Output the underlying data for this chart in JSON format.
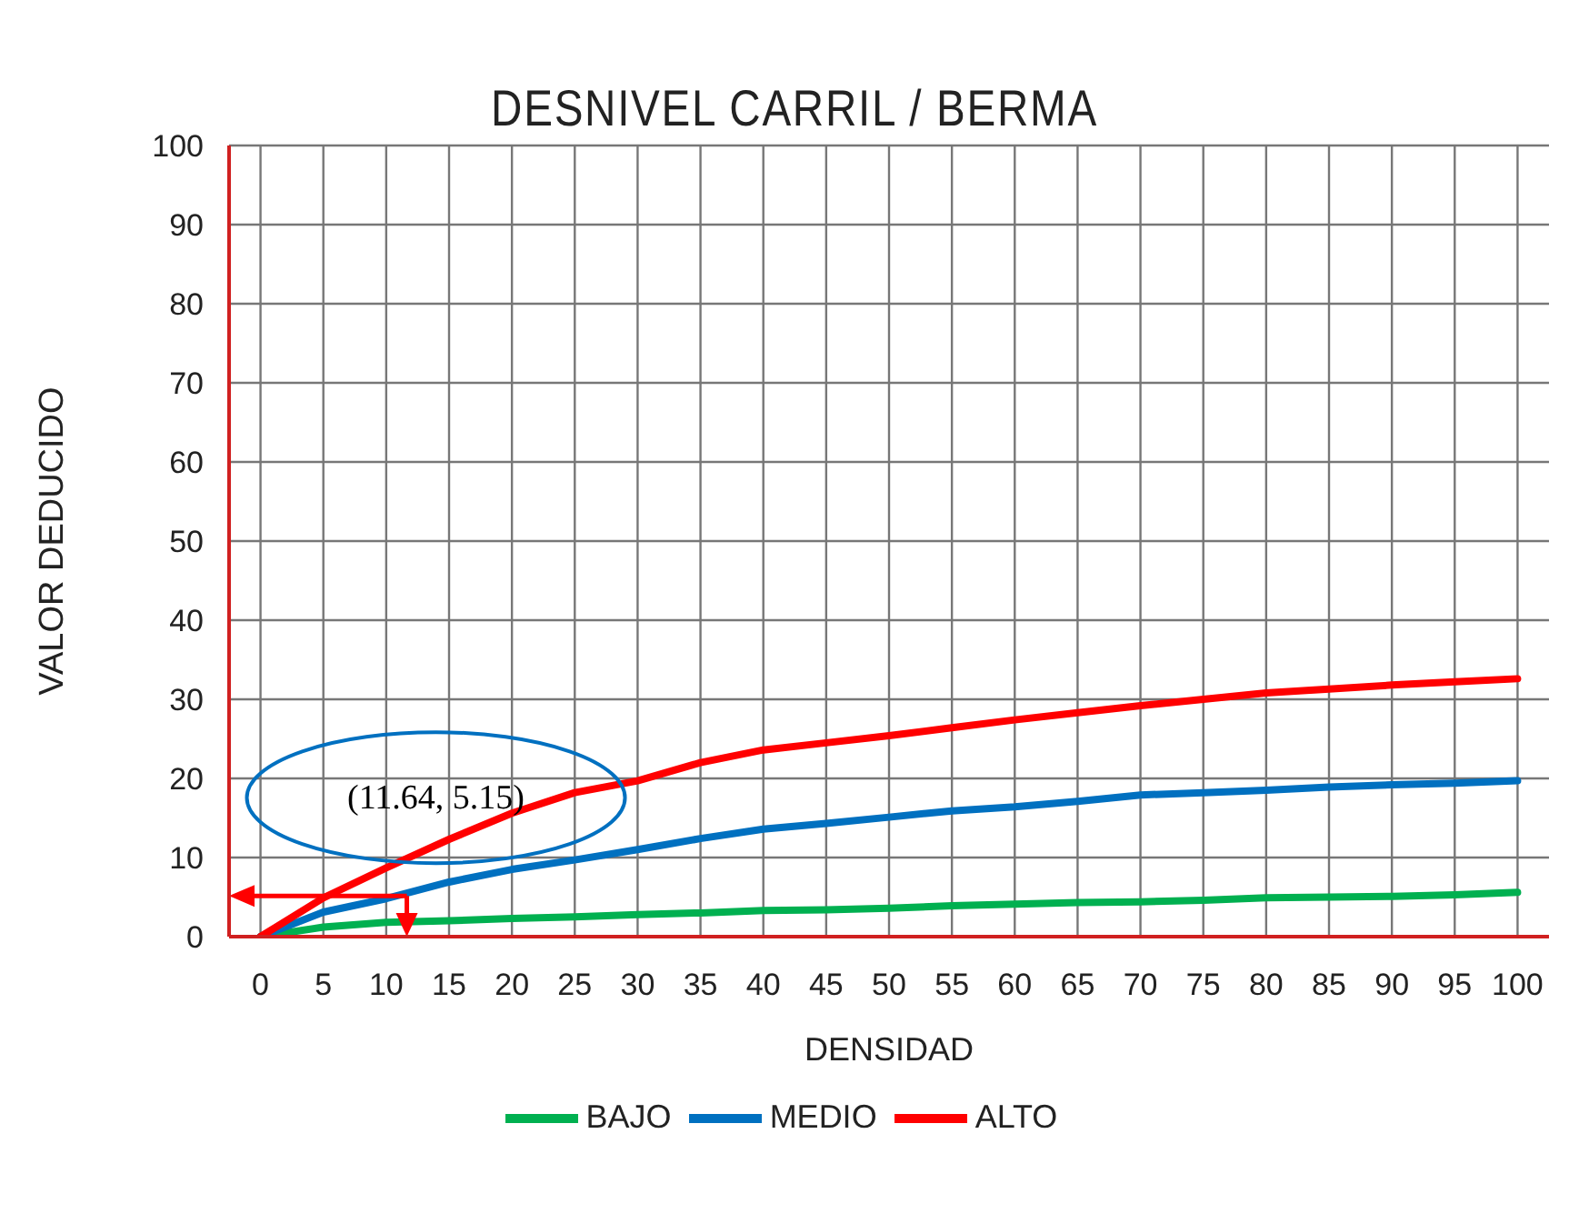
{
  "chart_data": {
    "type": "line",
    "title": "DESNIVEL CARRIL / BERMA",
    "xlabel": "DENSIDAD",
    "ylabel": "VALOR DEDUCIDO",
    "x": [
      0,
      5,
      10,
      15,
      20,
      25,
      30,
      35,
      40,
      45,
      50,
      55,
      60,
      65,
      70,
      75,
      80,
      85,
      90,
      95,
      100
    ],
    "series": [
      {
        "name": "BAJO",
        "color": "#00b050",
        "values": [
          0,
          1.2,
          1.8,
          2.0,
          2.3,
          2.5,
          2.8,
          3.0,
          3.3,
          3.4,
          3.6,
          3.9,
          4.1,
          4.3,
          4.4,
          4.6,
          4.9,
          5.0,
          5.1,
          5.3,
          5.6
        ]
      },
      {
        "name": "MEDIO",
        "color": "#0070c0",
        "values": [
          0,
          3.1,
          4.8,
          6.9,
          8.5,
          9.7,
          11.0,
          12.4,
          13.6,
          14.3,
          15.1,
          15.9,
          16.4,
          17.1,
          17.9,
          18.2,
          18.5,
          18.9,
          19.2,
          19.4,
          19.7
        ]
      },
      {
        "name": "ALTO",
        "color": "#ff0000",
        "values": [
          0,
          4.9,
          8.7,
          12.3,
          15.6,
          18.2,
          19.7,
          22.0,
          23.6,
          24.5,
          25.4,
          26.4,
          27.4,
          28.3,
          29.2,
          30.0,
          30.8,
          31.3,
          31.8,
          32.2,
          32.6
        ]
      }
    ],
    "xlim": [
      -2.5,
      102.5
    ],
    "xticks": [
      0,
      5,
      10,
      15,
      20,
      25,
      30,
      35,
      40,
      45,
      50,
      55,
      60,
      65,
      70,
      75,
      80,
      85,
      90,
      95,
      100
    ],
    "ylim": [
      0,
      100
    ],
    "yticks": [
      0,
      10,
      20,
      30,
      40,
      50,
      60,
      70,
      80,
      90,
      100
    ],
    "grid": true,
    "legend": "bottom",
    "marker": "none",
    "line_style": "solid",
    "annotations": [
      {
        "text": "(11.64, 5.15)",
        "x": 11.64,
        "y": 5.15
      }
    ]
  }
}
